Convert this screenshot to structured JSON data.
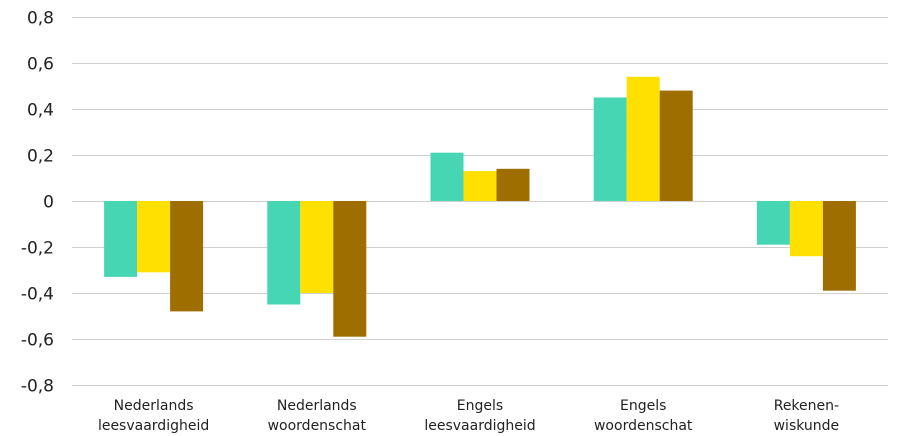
{
  "chart_data": {
    "type": "bar",
    "categories": [
      [
        "Nederlands",
        "leesvaardigheid"
      ],
      [
        "Nederlands",
        "woordenschat"
      ],
      [
        "Engels",
        "leesvaardigheid"
      ],
      [
        "Engels",
        "woordenschat"
      ],
      [
        "Rekenen-",
        "wiskunde"
      ]
    ],
    "series": [
      {
        "color": "#46D6B4",
        "values": [
          -0.33,
          -0.45,
          0.21,
          0.45,
          -0.19
        ]
      },
      {
        "color": "#FFE000",
        "values": [
          -0.31,
          -0.4,
          0.13,
          0.54,
          -0.24
        ]
      },
      {
        "color": "#9E6E00",
        "values": [
          -0.48,
          -0.59,
          0.14,
          0.48,
          -0.39
        ]
      }
    ],
    "y_ticks": [
      "0,8",
      "0,6",
      "0,4",
      "0,2",
      "0",
      "-0,2",
      "-0,4",
      "-0,6",
      "-0,8"
    ],
    "tick_values": [
      0.8,
      0.6,
      0.4,
      0.2,
      0,
      -0.2,
      -0.4,
      -0.6,
      -0.8
    ],
    "ylim": [
      -0.8,
      0.8
    ],
    "grid": true,
    "legend": "none"
  }
}
